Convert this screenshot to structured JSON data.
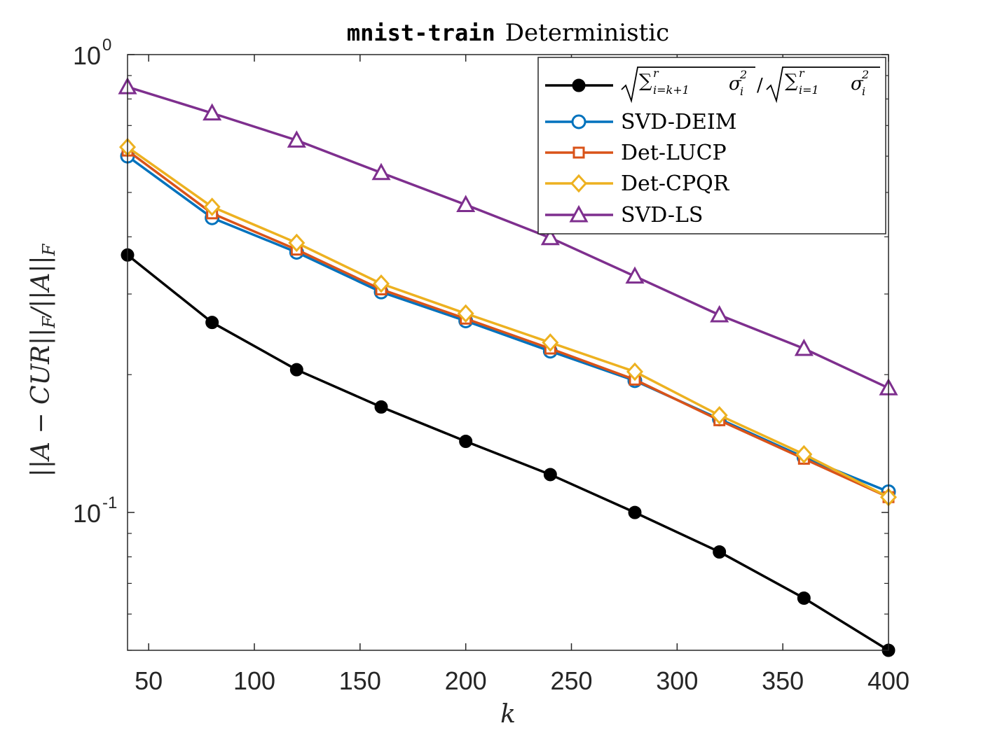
{
  "chart_data": {
    "type": "line",
    "title_mono": "mnist-train",
    "title_text": "Deterministic",
    "xlabel": "k",
    "ylabel": "||A − CUR||F / ||A||F",
    "ylabel_parts": {
      "main": "||A − CUR||",
      "sub1": "F",
      "mid": "/||A||",
      "sub2": "F"
    },
    "xlim": [
      40,
      400
    ],
    "ylim": [
      0.05,
      1
    ],
    "yscale": "log",
    "x_ticks": [
      50,
      100,
      150,
      200,
      250,
      300,
      350,
      400
    ],
    "y_ticks": [
      {
        "value": 1,
        "base": "10",
        "exp": "0"
      },
      {
        "value": 0.1,
        "base": "10",
        "exp": "-1"
      }
    ],
    "grid": false,
    "legend_position": "top-right",
    "x": [
      40,
      80,
      120,
      160,
      200,
      240,
      280,
      320,
      360,
      400
    ],
    "series": [
      {
        "name": "√(Σ_{i=k+1}^r σ_i²)/√(Σ_{i=1}^r σ_i²)",
        "color": "#000000",
        "marker": "dot",
        "values": [
          0.365,
          0.26,
          0.205,
          0.17,
          0.143,
          0.121,
          0.1,
          0.082,
          0.065,
          0.05
        ]
      },
      {
        "name": "SVD-DEIM",
        "color": "#0072BD",
        "marker": "circle",
        "values": [
          0.6,
          0.44,
          0.37,
          0.303,
          0.262,
          0.225,
          0.194,
          0.16,
          0.132,
          0.111
        ]
      },
      {
        "name": "Det-LUCP",
        "color": "#D95319",
        "marker": "square",
        "values": [
          0.617,
          0.45,
          0.375,
          0.307,
          0.265,
          0.228,
          0.195,
          0.159,
          0.131,
          0.108
        ]
      },
      {
        "name": "Det-CPQR",
        "color": "#EDB120",
        "marker": "diamond",
        "values": [
          0.628,
          0.465,
          0.388,
          0.316,
          0.272,
          0.235,
          0.203,
          0.163,
          0.134,
          0.108
        ]
      },
      {
        "name": "SVD-LS",
        "color": "#7E2F8E",
        "marker": "triangle",
        "values": [
          0.85,
          0.745,
          0.65,
          0.552,
          0.47,
          0.398,
          0.328,
          0.27,
          0.228,
          0.187
        ]
      }
    ]
  }
}
